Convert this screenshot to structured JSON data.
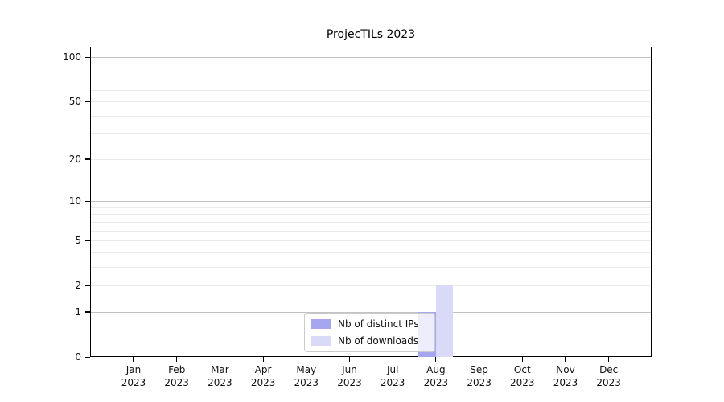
{
  "chart_data": {
    "type": "bar",
    "title": "ProjecTILs 2023",
    "categories": [
      "Jan 2023",
      "Feb 2023",
      "Mar 2023",
      "Apr 2023",
      "May 2023",
      "Jun 2023",
      "Jul 2023",
      "Aug 2023",
      "Sep 2023",
      "Oct 2023",
      "Nov 2023",
      "Dec 2023"
    ],
    "series": [
      {
        "name": "Nb of distinct IPs",
        "color": "#a5a5f0",
        "values": [
          0,
          0,
          0,
          0,
          0,
          0,
          0,
          1,
          0,
          0,
          0,
          0
        ]
      },
      {
        "name": "Nb of downloads",
        "color": "#d9d9f8",
        "values": [
          0,
          0,
          0,
          0,
          0,
          0,
          0,
          2,
          0,
          0,
          0,
          0
        ]
      }
    ],
    "yscale": "log1p",
    "ylim": [
      0,
      115
    ],
    "yticks": [
      0,
      1,
      2,
      5,
      10,
      20,
      50,
      100
    ],
    "yticks_minor": [
      3,
      4,
      6,
      7,
      8,
      9,
      30,
      40,
      60,
      70,
      80,
      90
    ],
    "grid": true,
    "grid_major_at": [
      1,
      10,
      100
    ],
    "legend_position": "lower center",
    "colors": {
      "grid_major": "#c2c2c2",
      "grid_minor": "#eaeaea",
      "axis": "#000000",
      "text": "#111111",
      "background": "#ffffff"
    }
  }
}
